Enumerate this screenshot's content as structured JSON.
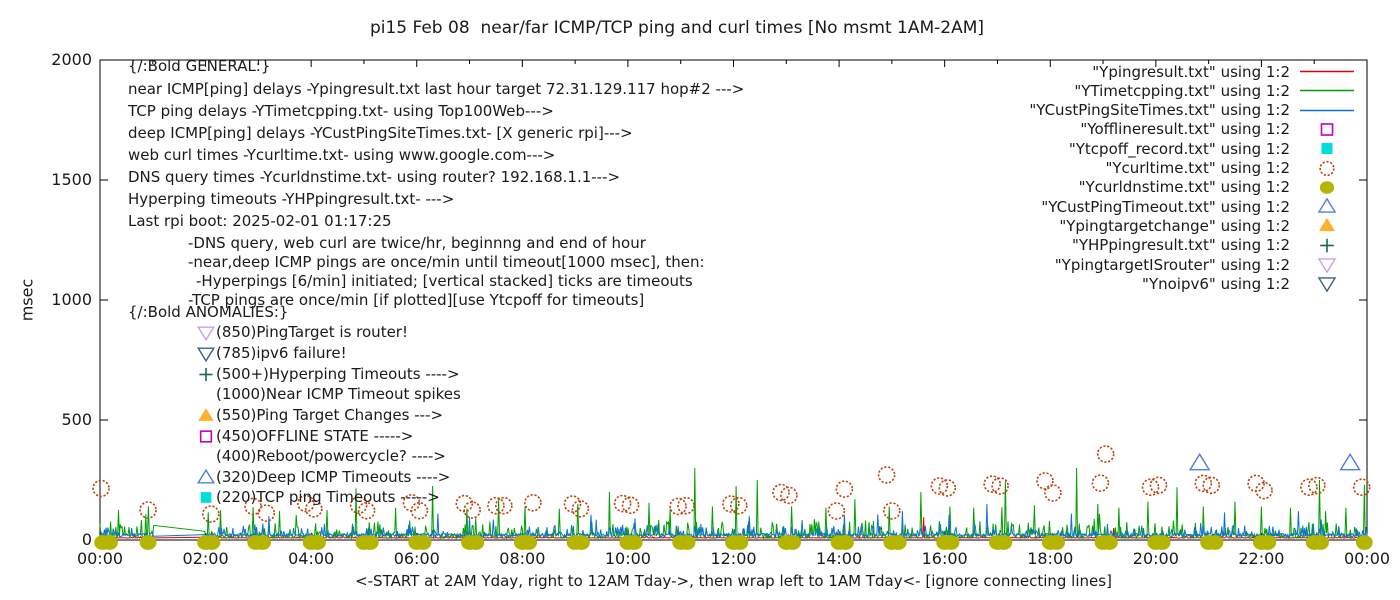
{
  "title": "pi15 Feb 08  near/far ICMP/TCP ping and curl times [No msmt 1AM-2AM]",
  "axis": {
    "ylabel": "msec",
    "xlabel": "<-START at 2AM Yday, right to 12AM Tday->, then wrap left to 1AM Tday<- [ignore connecting lines]",
    "yticks": [
      0,
      500,
      1000,
      1500,
      2000
    ],
    "xticks": [
      "00:00",
      "02:00",
      "04:00",
      "06:00",
      "08:00",
      "10:00",
      "12:00",
      "14:00",
      "16:00",
      "18:00",
      "20:00",
      "22:00",
      "00:00"
    ]
  },
  "legend": {
    "entries": [
      {
        "label": "\"Ypingresult.txt\" using 1:2",
        "marker": "line",
        "color": "#e60000"
      },
      {
        "label": "\"YTimetcpping.txt\" using 1:2",
        "marker": "line",
        "color": "#00a000"
      },
      {
        "label": "\"YCustPingSiteTimes.txt\" using 1:2",
        "marker": "line",
        "color": "#0c70d8"
      },
      {
        "label": "\"Yofflineresult.txt\" using 1:2",
        "marker": "open-square",
        "color": "#bf00bf"
      },
      {
        "label": "\"Ytcpoff_record.txt\" using 1:2",
        "marker": "filled-square",
        "color": "#00dddd"
      },
      {
        "label": "\"Ycurltime.txt\" using 1:2",
        "marker": "open-circle",
        "color": "#c1440e"
      },
      {
        "label": "\"Ycurldnstime.txt\" using 1:2",
        "marker": "filled-circle",
        "color": "#b5b500"
      },
      {
        "label": "\"YCustPingTimeout.txt\" using 1:2",
        "marker": "open-triangle-up",
        "color": "#4f81d8"
      },
      {
        "label": "\"Ypingtargetchange\" using 1:2",
        "marker": "filled-triangle-up",
        "color": "#ffb02e"
      },
      {
        "label": "\"YHPpingresult.txt\" using 1:2",
        "marker": "plus",
        "color": "#156b45"
      },
      {
        "label": "\"YpingtargetISrouter\" using 1:2",
        "marker": "open-triangle-down",
        "color": "#c9a0f0"
      },
      {
        "label": "\"Ynoipv6\" using 1:2",
        "marker": "open-triangle-down",
        "color": "#3d6080"
      }
    ]
  },
  "general": {
    "header": "{/:Bold GENERAL:}",
    "lines": [
      "near ICMP[ping] delays -Ypingresult.txt last hour target 72.31.129.117 hop#2 --->",
      "TCP ping delays -YTimetcpping.txt- using Top100Web--->",
      "deep ICMP[ping] delays -YCustPingSiteTimes.txt- [X generic rpi]--->",
      "web curl times -Ycurltime.txt- using www.google.com--->",
      "DNS query times -Ycurldnstime.txt- using router? 192.168.1.1--->",
      "Hyperping timeouts -YHPpingresult.txt- --->",
      "Last rpi boot: 2025-02-01 01:17:25",
      "-DNS query, web curl are twice/hr, beginnng and end of hour",
      "-near,deep ICMP pings are once/min until timeout[1000 msec], then:",
      "-Hyperpings [6/min] initiated; [vertical stacked] ticks are timeouts",
      "-TCP pings are once/min [if plotted][use Ytcpoff for timeouts]"
    ]
  },
  "anomalies": {
    "header": "{/:Bold ANOMALIES:}",
    "items": [
      {
        "marker": "open-triangle-down",
        "color": "#c9a0f0",
        "label": "(850)PingTarget is router!"
      },
      {
        "marker": "open-triangle-down",
        "color": "#3d6080",
        "label": "(785)ipv6 failure!"
      },
      {
        "marker": "plus",
        "color": "#156b45",
        "label": "(500+)Hyperping Timeouts ---->"
      },
      {
        "marker": null,
        "color": null,
        "label": "(1000)Near ICMP Timeout spikes"
      },
      {
        "marker": "filled-triangle-up",
        "color": "#ffb02e",
        "label": "(550)Ping Target Changes --->"
      },
      {
        "marker": "open-square",
        "color": "#bf00bf",
        "label": "(450)OFFLINE STATE ----->"
      },
      {
        "marker": null,
        "color": null,
        "label": "(400)Reboot/powercycle? ---->"
      },
      {
        "marker": "open-triangle-up",
        "color": "#4f81d8",
        "label": "(320)Deep ICMP Timeouts ---->"
      },
      {
        "marker": "filled-square",
        "color": "#00dddd",
        "label": "(220)TCP ping Timeouts ----->"
      }
    ]
  },
  "chart_data": {
    "type": "line",
    "title": "pi15 Feb 08  near/far ICMP/TCP ping and curl times [No msmt 1AM-2AM]",
    "xlabel": "<-START at 2AM Yday, right to 12AM Tday->, then wrap left to 1AM Tday<- [ignore connecting lines]",
    "ylabel": "msec",
    "xlim_hours": [
      0,
      24
    ],
    "ylim": [
      0,
      2000
    ],
    "grid": false,
    "legend_position": "top-right-inside",
    "no_measurement_gap_hours": [
      1.0,
      2.0
    ],
    "series": [
      {
        "name": "Ypingresult.txt",
        "style": "line",
        "color": "#e60000",
        "seed": 3,
        "baseline_msec": 8,
        "noise_amp_msec": 5,
        "spikes": [
          [
            15.6,
            95
          ],
          [
            19.2,
            50
          ]
        ]
      },
      {
        "name": "YTimetcpping.txt",
        "style": "line",
        "color": "#00a000",
        "seed": 7,
        "baseline_msec": 8,
        "noise_amp_msec": 60,
        "spikes": [
          [
            0.35,
            125
          ],
          [
            0.91,
            140
          ],
          [
            2.05,
            115
          ],
          [
            2.9,
            137
          ],
          [
            3.4,
            120
          ],
          [
            4.3,
            125
          ],
          [
            4.85,
            215
          ],
          [
            5.6,
            135
          ],
          [
            6.3,
            225
          ],
          [
            6.95,
            130
          ],
          [
            7.55,
            170
          ],
          [
            8.05,
            140
          ],
          [
            8.7,
            130
          ],
          [
            9.05,
            150
          ],
          [
            9.65,
            200
          ],
          [
            10.4,
            155
          ],
          [
            10.8,
            130
          ],
          [
            11.27,
            300
          ],
          [
            11.6,
            140
          ],
          [
            12.05,
            225
          ],
          [
            12.45,
            250
          ],
          [
            13.1,
            140
          ],
          [
            13.75,
            135
          ],
          [
            14.3,
            170
          ],
          [
            14.95,
            140
          ],
          [
            15.55,
            200
          ],
          [
            16.1,
            140
          ],
          [
            16.55,
            135
          ],
          [
            17.15,
            245
          ],
          [
            17.7,
            145
          ],
          [
            18.5,
            300
          ],
          [
            18.9,
            150
          ],
          [
            19.3,
            135
          ],
          [
            19.85,
            160
          ],
          [
            20.4,
            220
          ],
          [
            20.9,
            140
          ],
          [
            21.5,
            160
          ],
          [
            22.0,
            140
          ],
          [
            22.55,
            135
          ],
          [
            23.1,
            250
          ],
          [
            23.6,
            135
          ],
          [
            23.95,
            230
          ]
        ]
      },
      {
        "name": "YCustPingSiteTimes.txt",
        "style": "line",
        "color": "#0c70d8",
        "seed": 13,
        "baseline_msec": 14,
        "noise_amp_msec": 45,
        "spikes": [
          [
            3.2,
            100
          ],
          [
            6.4,
            110
          ],
          [
            9.3,
            105
          ],
          [
            12.3,
            100
          ],
          [
            15.2,
            120
          ],
          [
            16.8,
            150
          ],
          [
            18.4,
            110
          ],
          [
            21.3,
            115
          ],
          [
            22.7,
            120
          ]
        ]
      },
      {
        "name": "Yofflineresult.txt",
        "style": "open-square",
        "color": "#bf00bf",
        "points": []
      },
      {
        "name": "Ytcpoff_record.txt",
        "style": "filled-square",
        "color": "#00dddd",
        "points": []
      },
      {
        "name": "Ycurltime.txt",
        "style": "open-circle",
        "color": "#c1440e",
        "points": [
          [
            0.02,
            215
          ],
          [
            0.91,
            125
          ],
          [
            2.1,
            108
          ],
          [
            2.9,
            140
          ],
          [
            3.15,
            112
          ],
          [
            3.9,
            152
          ],
          [
            4.05,
            130
          ],
          [
            4.9,
            145
          ],
          [
            5.05,
            122
          ],
          [
            5.9,
            155
          ],
          [
            6.05,
            122
          ],
          [
            6.9,
            152
          ],
          [
            7.05,
            125
          ],
          [
            7.5,
            143
          ],
          [
            7.65,
            143
          ],
          [
            8.2,
            155
          ],
          [
            8.95,
            150
          ],
          [
            9.1,
            130
          ],
          [
            9.9,
            152
          ],
          [
            10.05,
            145
          ],
          [
            10.95,
            140
          ],
          [
            11.1,
            143
          ],
          [
            11.95,
            150
          ],
          [
            12.1,
            143
          ],
          [
            12.9,
            198
          ],
          [
            13.05,
            186
          ],
          [
            13.95,
            121
          ],
          [
            14.1,
            212
          ],
          [
            14.9,
            271
          ],
          [
            15.0,
            121
          ],
          [
            15.9,
            225
          ],
          [
            16.05,
            217
          ],
          [
            16.9,
            233
          ],
          [
            17.05,
            225
          ],
          [
            17.9,
            246
          ],
          [
            18.05,
            196
          ],
          [
            18.95,
            237
          ],
          [
            19.05,
            358
          ],
          [
            19.9,
            220
          ],
          [
            20.05,
            228
          ],
          [
            20.9,
            236
          ],
          [
            21.05,
            228
          ],
          [
            21.9,
            236
          ],
          [
            22.05,
            206
          ],
          [
            22.9,
            220
          ],
          [
            23.05,
            227
          ],
          [
            23.9,
            220
          ]
        ]
      },
      {
        "name": "Ycurldnstime.txt",
        "style": "filled-circle",
        "color": "#b5b500",
        "value_msec": 2,
        "hours": [
          0.05,
          0.18,
          0.91,
          2.0,
          2.12,
          2.95,
          3.08,
          4.0,
          4.12,
          5.0,
          5.12,
          6.0,
          6.12,
          7.0,
          7.12,
          8.0,
          8.12,
          9.0,
          9.12,
          10.0,
          10.12,
          11.0,
          11.12,
          12.0,
          12.12,
          13.0,
          13.12,
          14.0,
          14.12,
          15.0,
          15.12,
          16.0,
          16.12,
          17.0,
          17.12,
          18.0,
          18.12,
          19.0,
          19.12,
          20.0,
          20.12,
          21.0,
          21.12,
          22.0,
          22.12,
          23.0,
          23.12,
          23.95
        ]
      },
      {
        "name": "YCustPingTimeout.txt",
        "style": "open-triangle-up",
        "color": "#4f81d8",
        "points": [
          [
            20.83,
            320
          ],
          [
            23.68,
            320
          ]
        ]
      },
      {
        "name": "Ypingtargetchange",
        "style": "filled-triangle-up",
        "color": "#ffb02e",
        "points": []
      },
      {
        "name": "YHPpingresult.txt",
        "style": "plus",
        "color": "#156b45",
        "points": []
      },
      {
        "name": "YpingtargetISrouter",
        "style": "open-triangle-down",
        "color": "#c9a0f0",
        "points": []
      },
      {
        "name": "Ynoipv6",
        "style": "open-triangle-down",
        "color": "#3d6080",
        "points": []
      }
    ]
  }
}
